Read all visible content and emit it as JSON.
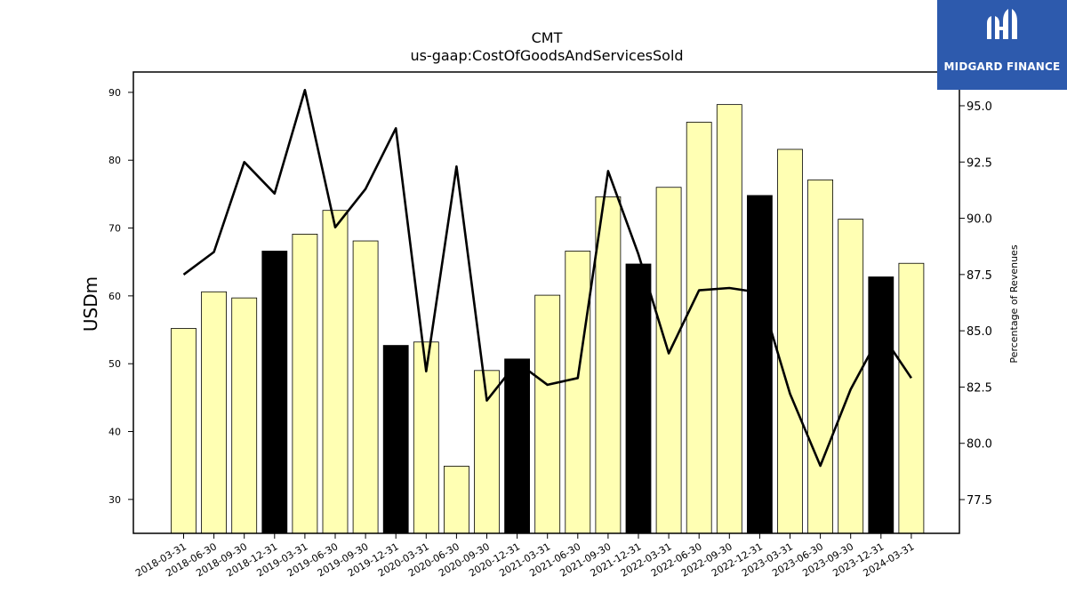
{
  "chart_data": {
    "type": "bar",
    "title": "CMT",
    "subtitle": "us-gaap:CostOfGoodsAndServicesSold",
    "ylabel": "USDm",
    "y2label": "Percentage of Revenues",
    "ylim": [
      25,
      93
    ],
    "y2lim": [
      76,
      96.5
    ],
    "yticks": [
      30,
      40,
      50,
      60,
      70,
      80,
      90
    ],
    "y2ticks": [
      "77.5",
      "80.0",
      "82.5",
      "85.0",
      "87.5",
      "90.0",
      "92.5",
      "95.0"
    ],
    "categories": [
      "2018-03-31",
      "2018-06-30",
      "2018-09-30",
      "2018-12-31",
      "2019-03-31",
      "2019-06-30",
      "2019-09-30",
      "2019-12-31",
      "2020-03-31",
      "2020-06-30",
      "2020-09-30",
      "2020-12-31",
      "2021-03-31",
      "2021-06-30",
      "2021-09-30",
      "2021-12-31",
      "2022-03-31",
      "2022-06-30",
      "2022-09-30",
      "2022-12-31",
      "2023-03-31",
      "2023-06-30",
      "2023-09-30",
      "2023-12-31",
      "2024-03-31"
    ],
    "series": [
      {
        "type": "bar",
        "axis": "left",
        "values": [
          55.2,
          60.6,
          59.7,
          66.6,
          69.1,
          72.6,
          68.1,
          52.7,
          53.2,
          34.9,
          49.0,
          50.7,
          60.1,
          66.6,
          74.6,
          64.7,
          76.0,
          85.6,
          88.2,
          74.8,
          81.6,
          77.1,
          71.3,
          62.8,
          64.8
        ],
        "highlight": [
          false,
          false,
          false,
          true,
          false,
          false,
          false,
          true,
          false,
          false,
          false,
          true,
          false,
          false,
          false,
          true,
          false,
          false,
          false,
          true,
          false,
          false,
          false,
          true,
          false
        ]
      },
      {
        "type": "line",
        "axis": "right",
        "values": [
          87.5,
          88.5,
          92.5,
          91.1,
          95.7,
          89.6,
          91.3,
          94.0,
          83.2,
          92.3,
          81.9,
          83.6,
          82.6,
          82.9,
          92.1,
          88.4,
          84.0,
          86.8,
          86.9,
          86.7,
          82.2,
          79.0,
          82.4,
          84.9,
          82.9
        ]
      }
    ],
    "colors": {
      "bar": "#ffffb3",
      "highlight": "#000000",
      "line": "#000000"
    }
  },
  "logo": {
    "text": "MIDGARD FINANCE",
    "bg": "#2d5aad"
  }
}
